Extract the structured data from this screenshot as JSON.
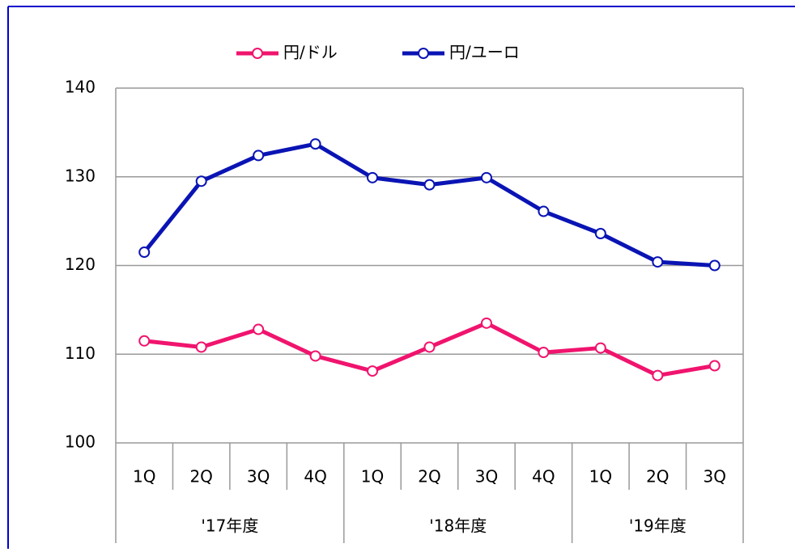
{
  "chart_data": {
    "type": "line",
    "groups": [
      {
        "label": "'17年度",
        "categories": [
          "1Q",
          "2Q",
          "3Q",
          "4Q"
        ]
      },
      {
        "label": "'18年度",
        "categories": [
          "1Q",
          "2Q",
          "3Q",
          "4Q"
        ]
      },
      {
        "label": "'19年度",
        "categories": [
          "1Q",
          "2Q",
          "3Q"
        ]
      }
    ],
    "series": [
      {
        "name": "円/ドル",
        "color": "#f0146e",
        "values": [
          111.5,
          110.8,
          112.8,
          109.8,
          108.1,
          110.8,
          113.5,
          110.2,
          110.7,
          107.6,
          108.7
        ]
      },
      {
        "name": "円/ユーロ",
        "color": "#0a14b4",
        "values": [
          121.5,
          129.5,
          132.4,
          133.7,
          129.9,
          129.1,
          129.9,
          126.1,
          123.6,
          120.4,
          120.0
        ]
      }
    ],
    "ylim": [
      100,
      140
    ],
    "yticks": [
      100,
      110,
      120,
      130,
      140
    ],
    "grid": true,
    "legend": "top"
  }
}
